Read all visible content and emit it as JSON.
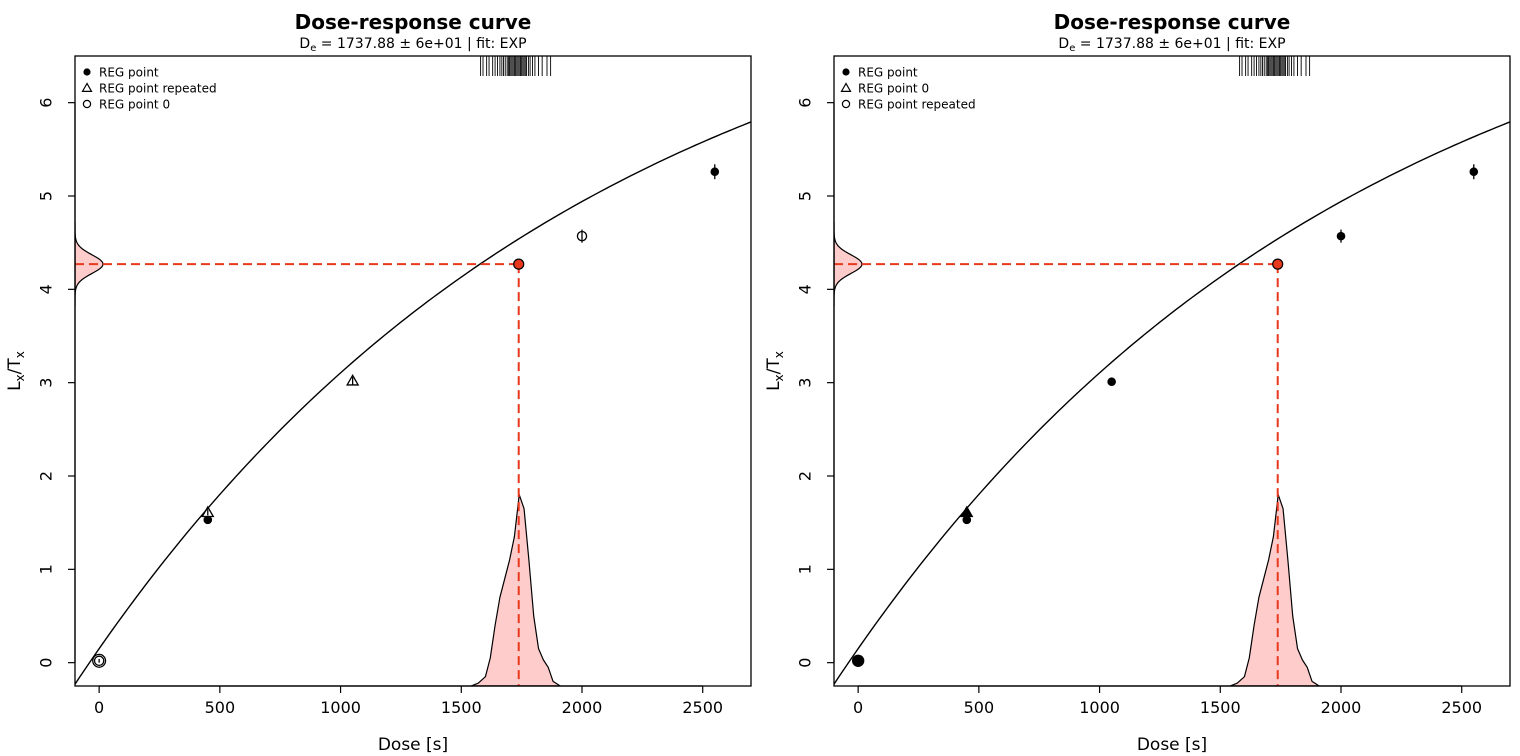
{
  "chart_data": [
    {
      "type": "scatter",
      "title": "Dose-response curve",
      "subtitle": {
        "main_pre": "D",
        "main_sub": "e",
        "main_post": " = 1737.88 ± 6e+01 | fit: EXP"
      },
      "xlabel": {
        "pre": "Dose [s]"
      },
      "ylabel": {
        "l": "L",
        "l_sub": "x",
        "mid": "/T",
        "t_sub": "x"
      },
      "xlim": [
        -100,
        2700
      ],
      "ylim": [
        -0.25,
        6.5
      ],
      "xticks": [
        0,
        500,
        1000,
        1500,
        2000,
        2500
      ],
      "yticks": [
        0,
        1,
        2,
        3,
        4,
        5,
        6
      ],
      "fit": {
        "a": 7.8,
        "d0": 2100,
        "c": 0.15
      },
      "de": {
        "x": 1737.88,
        "y": 4.27
      },
      "legend": {
        "placement": "top-left",
        "entries": [
          {
            "label": "REG point",
            "marker": "filled-circle"
          },
          {
            "label": "REG point repeated",
            "marker": "triangle"
          },
          {
            "label": "REG point 0",
            "marker": "open-circle"
          }
        ]
      },
      "series": [
        {
          "name": "REG point",
          "marker": "filled-circle",
          "x": [
            450,
            2550
          ],
          "y": [
            1.53,
            5.26
          ],
          "err": [
            0.03,
            0.08
          ]
        },
        {
          "name": "REG point repeated",
          "marker": "triangle",
          "x": [
            450,
            1050
          ],
          "y": [
            1.61,
            3.02
          ],
          "err": [
            0.03,
            0.04
          ]
        },
        {
          "name": "REG point 0",
          "marker": "open-circle",
          "x": [
            0,
            2000
          ],
          "y": [
            0.02,
            4.57
          ],
          "err": [
            0.02,
            0.07
          ]
        }
      ],
      "rug": [
        1580,
        1590,
        1605,
        1615,
        1630,
        1640,
        1650,
        1660,
        1668,
        1675,
        1682,
        1690,
        1695,
        1700,
        1705,
        1710,
        1715,
        1720,
        1725,
        1730,
        1735,
        1740,
        1745,
        1750,
        1755,
        1760,
        1765,
        1770,
        1778,
        1785,
        1795,
        1805,
        1820,
        1835,
        1855,
        1870
      ],
      "de_density": {
        "x": [
          1540,
          1570,
          1600,
          1620,
          1640,
          1660,
          1680,
          1700,
          1720,
          1740,
          1760,
          1780,
          1800,
          1820,
          1840,
          1860,
          1880,
          1910
        ],
        "d": [
          0,
          0.03,
          0.1,
          0.3,
          0.65,
          0.95,
          1.15,
          1.35,
          1.6,
          2.05,
          1.9,
          1.35,
          0.75,
          0.4,
          0.28,
          0.2,
          0.05,
          0
        ]
      }
    },
    {
      "type": "scatter",
      "title": "Dose-response curve",
      "subtitle": {
        "main_pre": "D",
        "main_sub": "e",
        "main_post": " = 1737.88 ± 6e+01 | fit: EXP"
      },
      "xlabel": {
        "pre": "Dose [s]"
      },
      "ylabel": {
        "l": "L",
        "l_sub": "x",
        "mid": "/T",
        "t_sub": "x"
      },
      "xlim": [
        -100,
        2700
      ],
      "ylim": [
        -0.25,
        6.5
      ],
      "xticks": [
        0,
        500,
        1000,
        1500,
        2000,
        2500
      ],
      "yticks": [
        0,
        1,
        2,
        3,
        4,
        5,
        6
      ],
      "fit": {
        "a": 7.8,
        "d0": 2100,
        "c": 0.15
      },
      "de": {
        "x": 1737.88,
        "y": 4.27
      },
      "legend": {
        "placement": "top-left",
        "entries": [
          {
            "label": "REG point",
            "marker": "filled-circle"
          },
          {
            "label": "REG point 0",
            "marker": "triangle"
          },
          {
            "label": "REG point repeated",
            "marker": "open-circle"
          }
        ]
      },
      "series": [
        {
          "name": "REG point",
          "marker": "filled-circle",
          "x": [
            0,
            450,
            1050,
            2000,
            2550
          ],
          "y": [
            0.02,
            1.53,
            3.01,
            4.57,
            5.26
          ],
          "err": [
            0.02,
            0.03,
            0.04,
            0.07,
            0.08
          ]
        },
        {
          "name": "REG point 0",
          "marker": "filled-triangle",
          "x": [
            450
          ],
          "y": [
            1.61
          ],
          "err": [
            0.03
          ]
        },
        {
          "name": "REG point repeated",
          "marker": "filled-circle-large",
          "x": [
            0
          ],
          "y": [
            0.02
          ],
          "err": [
            0.02
          ]
        }
      ],
      "rug": [
        1580,
        1590,
        1605,
        1615,
        1630,
        1640,
        1650,
        1660,
        1668,
        1675,
        1682,
        1690,
        1695,
        1700,
        1705,
        1710,
        1715,
        1720,
        1725,
        1730,
        1735,
        1740,
        1745,
        1750,
        1755,
        1760,
        1765,
        1770,
        1778,
        1785,
        1795,
        1805,
        1820,
        1835,
        1855,
        1870
      ],
      "de_density": {
        "x": [
          1540,
          1570,
          1600,
          1620,
          1640,
          1660,
          1680,
          1700,
          1720,
          1740,
          1760,
          1780,
          1800,
          1820,
          1840,
          1860,
          1880,
          1910
        ],
        "d": [
          0,
          0.03,
          0.1,
          0.3,
          0.65,
          0.95,
          1.15,
          1.35,
          1.6,
          2.05,
          1.9,
          1.35,
          0.75,
          0.4,
          0.28,
          0.2,
          0.05,
          0
        ]
      }
    }
  ]
}
